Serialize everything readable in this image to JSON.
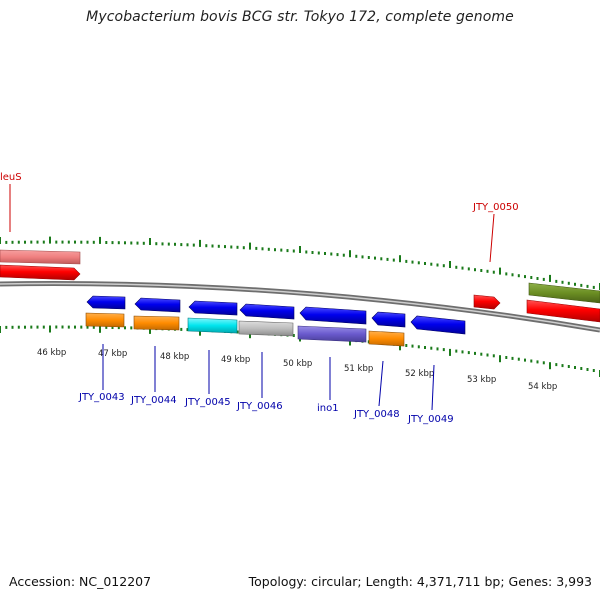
{
  "title": "Mycobacterium bovis BCG str. Tokyo 172, complete genome",
  "footer": {
    "accession": "Accession: NC_012207",
    "summary": "Topology: circular; Length: 4,371,711 bp; Genes: 3,993"
  },
  "ruler": {
    "ticks": [
      "46 kbp",
      "47 kbp",
      "48 kbp",
      "49 kbp",
      "50 kbp",
      "51 kbp",
      "52 kbp",
      "53 kbp",
      "54 kbp"
    ]
  },
  "genes": [
    {
      "label": "leuS",
      "label_color": "#cc0000"
    },
    {
      "label": "JTY_0050",
      "label_color": "#cc0000"
    },
    {
      "label": "JTY_0043",
      "label_color": "#0000aa"
    },
    {
      "label": "JTY_0044",
      "label_color": "#0000aa"
    },
    {
      "label": "JTY_0045",
      "label_color": "#0000aa"
    },
    {
      "label": "JTY_0046",
      "label_color": "#0000aa"
    },
    {
      "label": "ino1",
      "label_color": "#0000aa"
    },
    {
      "label": "JTY_0048",
      "label_color": "#0000aa"
    },
    {
      "label": "JTY_0049",
      "label_color": "#0000aa"
    }
  ],
  "colors": {
    "backbone": "#888888",
    "ticks": "#1a7a1a",
    "cds_forward": "#ff0000",
    "cds_reverse": "#0000ee",
    "gene_pink": "#f08080",
    "gene_olive": "#6b8e23",
    "orange": "#ff8c00",
    "cyan": "#00e5ee",
    "gray": "#bdbdbd",
    "purple": "#6a5acd"
  }
}
